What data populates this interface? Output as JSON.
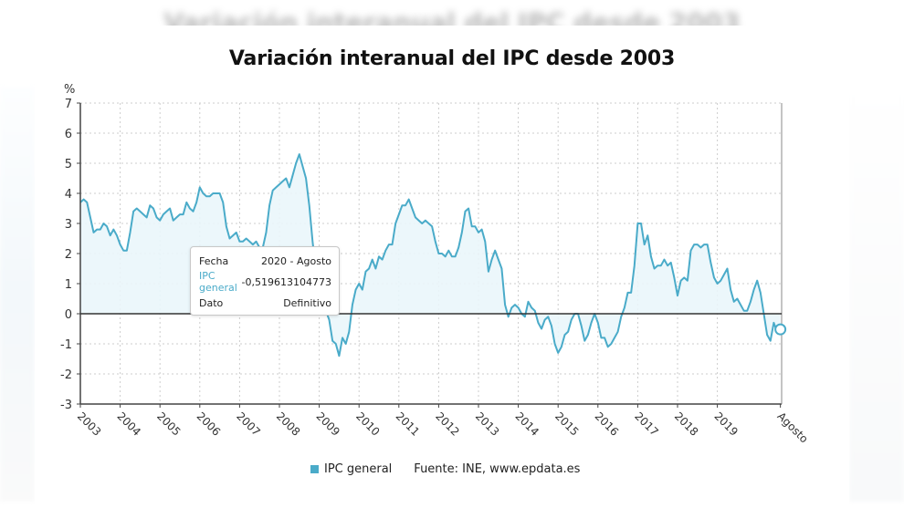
{
  "background": {
    "ghost_title": "Variación interanual del IPC desde 2003"
  },
  "chart_data": {
    "type": "area",
    "title": "Variación interanual del IPC desde 2003",
    "ylabel": "%",
    "xlabel": "",
    "ylim": [
      -3,
      7
    ],
    "yticks": [
      7,
      6,
      5,
      4,
      3,
      2,
      1,
      0,
      -1,
      -2,
      -3
    ],
    "grid": true,
    "legend_position": "bottom",
    "x_start": "2003-01",
    "x_end": "2020-08",
    "x_tick_labels": [
      "2003",
      "2004",
      "2005",
      "2006",
      "2007",
      "2008",
      "2009",
      "2010",
      "2011",
      "2012",
      "2013",
      "2014",
      "2015",
      "2016",
      "2017",
      "2018",
      "2019",
      "Agosto"
    ],
    "series": [
      {
        "name": "IPC general",
        "color": "#4aabc9",
        "values": [
          3.7,
          3.8,
          3.7,
          3.2,
          2.7,
          2.8,
          2.8,
          3.0,
          2.9,
          2.6,
          2.8,
          2.6,
          2.3,
          2.1,
          2.1,
          2.7,
          3.4,
          3.5,
          3.4,
          3.3,
          3.2,
          3.6,
          3.5,
          3.2,
          3.1,
          3.3,
          3.4,
          3.5,
          3.1,
          3.2,
          3.3,
          3.3,
          3.7,
          3.5,
          3.4,
          3.7,
          4.2,
          4.0,
          3.9,
          3.9,
          4.0,
          4.0,
          4.0,
          3.7,
          2.9,
          2.5,
          2.6,
          2.7,
          2.4,
          2.4,
          2.5,
          2.4,
          2.3,
          2.4,
          2.2,
          2.2,
          2.7,
          3.6,
          4.1,
          4.2,
          4.3,
          4.4,
          4.5,
          4.2,
          4.6,
          5.0,
          5.3,
          4.9,
          4.5,
          3.6,
          2.4,
          1.4,
          0.8,
          0.7,
          0.1,
          -0.2,
          -0.9,
          -1.0,
          -1.4,
          -0.8,
          -1.0,
          -0.6,
          0.3,
          0.8,
          1.0,
          0.8,
          1.4,
          1.5,
          1.8,
          1.5,
          1.9,
          1.8,
          2.1,
          2.3,
          2.3,
          3.0,
          3.3,
          3.6,
          3.6,
          3.8,
          3.5,
          3.2,
          3.1,
          3.0,
          3.1,
          3.0,
          2.9,
          2.4,
          2.0,
          2.0,
          1.9,
          2.1,
          1.9,
          1.9,
          2.2,
          2.7,
          3.4,
          3.5,
          2.9,
          2.9,
          2.7,
          2.8,
          2.4,
          1.4,
          1.8,
          2.1,
          1.8,
          1.5,
          0.3,
          -0.1,
          0.2,
          0.3,
          0.2,
          0.0,
          -0.1,
          0.4,
          0.2,
          0.1,
          -0.3,
          -0.5,
          -0.2,
          -0.1,
          -0.4,
          -1.0,
          -1.3,
          -1.1,
          -0.7,
          -0.6,
          -0.2,
          0.0,
          0.0,
          -0.4,
          -0.9,
          -0.7,
          -0.3,
          0.0,
          -0.3,
          -0.8,
          -0.8,
          -1.1,
          -1.0,
          -0.8,
          -0.6,
          -0.1,
          0.2,
          0.7,
          0.7,
          1.6,
          3.0,
          3.0,
          2.3,
          2.6,
          1.9,
          1.5,
          1.6,
          1.6,
          1.8,
          1.6,
          1.7,
          1.2,
          0.6,
          1.1,
          1.2,
          1.1,
          2.1,
          2.3,
          2.3,
          2.2,
          2.3,
          2.3,
          1.7,
          1.2,
          1.0,
          1.1,
          1.3,
          1.5,
          0.8,
          0.4,
          0.5,
          0.3,
          0.1,
          0.1,
          0.4,
          0.8,
          1.1,
          0.7,
          0.0,
          -0.7,
          -0.9,
          -0.3,
          -0.6,
          -0.5
        ]
      }
    ],
    "highlighted_point": {
      "index": 211,
      "value": -0.519613104773
    }
  },
  "tooltip": {
    "date_label": "Fecha",
    "date_value": "2020 - Agosto",
    "series_label": "IPC general",
    "series_value": "-0,519613104773",
    "status_label": "Dato",
    "status_value": "Definitivo"
  },
  "legend": {
    "series_label": "IPC general",
    "source": "Fuente: INE, www.epdata.es"
  },
  "colors": {
    "line": "#4aabc9",
    "fill": "#eaf6fb",
    "grid": "#cccccc",
    "axis": "#444444"
  }
}
